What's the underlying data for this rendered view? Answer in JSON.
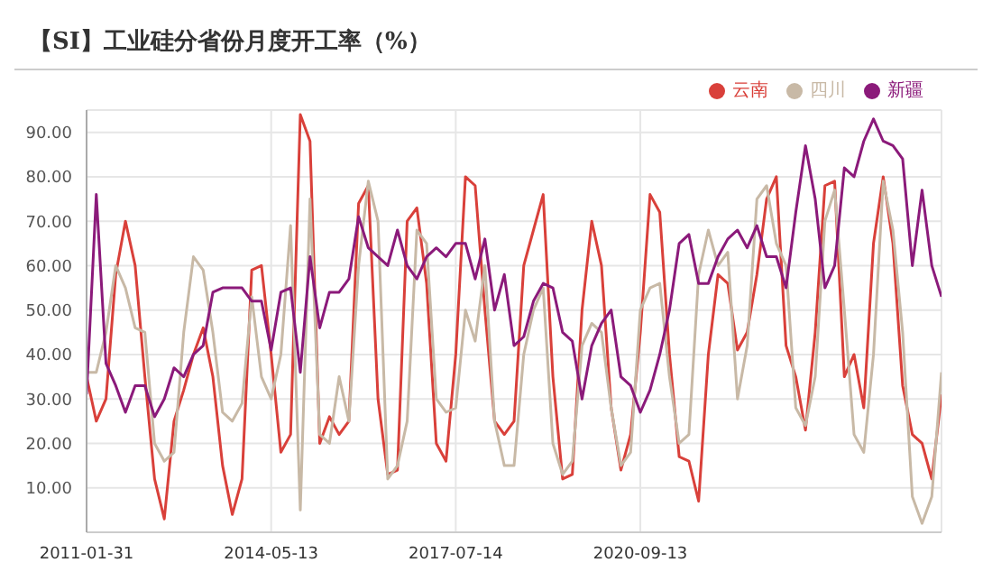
{
  "chart_data": {
    "type": "line",
    "title": "【SI】工业硅分省份月度开工率（%）",
    "categories": [
      "2011-01-31",
      null,
      null,
      null,
      null,
      null,
      null,
      null,
      null,
      null,
      null,
      null,
      null,
      null,
      null,
      null,
      null,
      null,
      null,
      "2014-05-13",
      null,
      null,
      null,
      null,
      null,
      null,
      null,
      null,
      null,
      null,
      null,
      null,
      null,
      null,
      null,
      null,
      null,
      null,
      "2017-07-14",
      null,
      null,
      null,
      null,
      null,
      null,
      null,
      null,
      null,
      null,
      null,
      null,
      null,
      null,
      null,
      null,
      null,
      null,
      "2020-09-13",
      null,
      null,
      null,
      null,
      null,
      null,
      null,
      null,
      null,
      null,
      null,
      null,
      null,
      null,
      null,
      null,
      null,
      null,
      null,
      null,
      null,
      null,
      null,
      null,
      null,
      null,
      null,
      null,
      null,
      null,
      null
    ],
    "series": [
      {
        "name": "云南",
        "color": "#d9403a",
        "values": [
          35,
          25,
          30,
          58,
          70,
          60,
          35,
          12,
          3,
          25,
          32,
          40,
          46,
          35,
          15,
          4,
          12,
          59,
          60,
          40,
          18,
          22,
          94,
          88,
          20,
          26,
          22,
          25,
          74,
          78,
          30,
          13,
          14,
          70,
          73,
          56,
          20,
          16,
          40,
          80,
          78,
          50,
          25,
          22,
          25,
          60,
          68,
          76,
          35,
          12,
          13,
          50,
          70,
          60,
          28,
          14,
          22,
          45,
          76,
          72,
          40,
          17,
          16,
          7,
          40,
          58,
          56,
          41,
          45,
          58,
          75,
          80,
          42,
          35,
          23,
          45,
          78,
          79,
          35,
          40,
          28,
          65,
          80,
          65,
          33,
          22,
          20,
          12,
          31
        ]
      },
      {
        "name": "四川",
        "color": "#c8b9a6",
        "values": [
          36,
          36,
          45,
          60,
          55,
          46,
          45,
          20,
          16,
          18,
          45,
          62,
          59,
          45,
          27,
          25,
          29,
          53,
          35,
          30,
          40,
          69,
          5,
          75,
          22,
          20,
          35,
          25,
          60,
          79,
          70,
          12,
          15,
          25,
          68,
          65,
          30,
          27,
          28,
          50,
          43,
          60,
          25,
          15,
          15,
          40,
          50,
          55,
          20,
          13,
          16,
          42,
          47,
          45,
          28,
          15,
          18,
          50,
          55,
          56,
          35,
          20,
          22,
          58,
          68,
          60,
          63,
          30,
          42,
          75,
          78,
          65,
          60,
          28,
          24,
          35,
          70,
          77,
          50,
          22,
          18,
          40,
          79,
          68,
          45,
          8,
          2,
          8,
          36
        ]
      },
      {
        "name": "新疆",
        "color": "#8b1a7a",
        "values": [
          31,
          76,
          38,
          33,
          27,
          33,
          33,
          26,
          30,
          37,
          35,
          40,
          42,
          54,
          55,
          55,
          55,
          52,
          52,
          41,
          54,
          55,
          36,
          62,
          46,
          54,
          54,
          57,
          71,
          64,
          62,
          60,
          68,
          60,
          57,
          62,
          64,
          62,
          65,
          65,
          57,
          66,
          50,
          58,
          42,
          44,
          52,
          56,
          55,
          45,
          43,
          30,
          42,
          47,
          50,
          35,
          33,
          27,
          32,
          40,
          50,
          65,
          67,
          56,
          56,
          62,
          66,
          68,
          64,
          69,
          62,
          62,
          55,
          72,
          87,
          75,
          55,
          60,
          82,
          80,
          88,
          93,
          88,
          87,
          84,
          60,
          77,
          60,
          53
        ]
      }
    ],
    "ylim": [
      0,
      95
    ],
    "yticks": [
      {
        "value": 10,
        "label": "10.00"
      },
      {
        "value": 20,
        "label": "20.00"
      },
      {
        "value": 30,
        "label": "30.00"
      },
      {
        "value": 40,
        "label": "40.00"
      },
      {
        "value": 50,
        "label": "50.00"
      },
      {
        "value": 60,
        "label": "60.00"
      },
      {
        "value": 70,
        "label": "70.00"
      },
      {
        "value": 80,
        "label": "80.00"
      },
      {
        "value": 90,
        "label": "90.00"
      }
    ],
    "grid": true,
    "legend": "top right",
    "marker": "none",
    "line_style": "solid"
  }
}
